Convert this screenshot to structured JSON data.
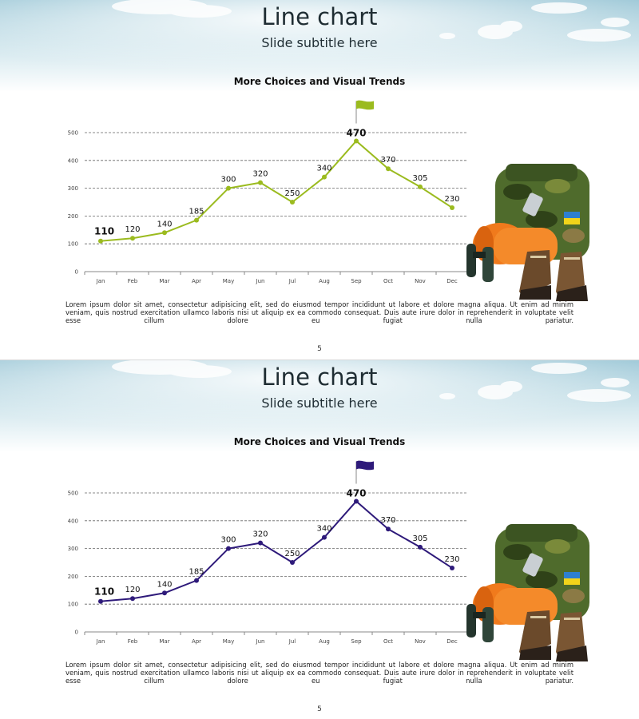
{
  "slides": [
    {
      "title": "Line chart",
      "subtitle": "Slide subtitle here",
      "page_number": "5",
      "body_text": "Lorem ipsum dolor sit amet, consectetur adipisicing elit, sed do eiusmod tempor incididunt ut labore et dolore magna aliqua. Ut enim ad minim veniam, quis nostrud exercitation ullamco laboris nisi ut aliquip ex ea commodo consequat. Duis aute irure dolor in reprehenderit in voluptate velit esse cillum dolore eu fugiat nulla pariatur.",
      "accent_color": "#9bbb1f",
      "flag_icon": "flag-icon",
      "image_icon": "hiking-gear-icon"
    },
    {
      "title": "Line chart",
      "subtitle": "Slide subtitle here",
      "page_number": "5",
      "body_text": "Lorem ipsum dolor sit amet, consectetur adipisicing elit, sed do eiusmod tempor incididunt ut labore et dolore magna aliqua. Ut enim ad minim veniam, quis nostrud exercitation ullamco laboris nisi ut aliquip ex ea commodo consequat. Duis aute irure dolor in reprehenderit in voluptate velit esse cillum dolore eu fugiat nulla pariatur.",
      "accent_color": "#2e1a7a",
      "flag_icon": "flag-icon",
      "image_icon": "hiking-gear-icon"
    }
  ],
  "chart_data": [
    {
      "type": "line",
      "title": "More Choices and Visual Trends",
      "categories": [
        "Jan",
        "Feb",
        "Mar",
        "Apr",
        "May",
        "Jun",
        "Jul",
        "Aug",
        "Sep",
        "Oct",
        "Nov",
        "Dec"
      ],
      "values": [
        110,
        120,
        140,
        185,
        300,
        320,
        250,
        340,
        470,
        370,
        305,
        230
      ],
      "data_labels": [
        "110",
        "120",
        "140",
        "185",
        "300",
        "320",
        "250",
        "340",
        "470",
        "370",
        "305",
        "230"
      ],
      "ylim": [
        0,
        500
      ],
      "yticks": [
        "0",
        "100",
        "200",
        "300",
        "400",
        "500"
      ],
      "grid": true,
      "color": "#9bbb1f",
      "highlight": [
        "min",
        "max"
      ]
    },
    {
      "type": "line",
      "title": "More Choices and Visual Trends",
      "categories": [
        "Jan",
        "Feb",
        "Mar",
        "Apr",
        "May",
        "Jun",
        "Jul",
        "Aug",
        "Sep",
        "Oct",
        "Nov",
        "Dec"
      ],
      "values": [
        110,
        120,
        140,
        185,
        300,
        320,
        250,
        340,
        470,
        370,
        305,
        230
      ],
      "data_labels": [
        "110",
        "120",
        "140",
        "185",
        "300",
        "320",
        "250",
        "340",
        "470",
        "370",
        "305",
        "230"
      ],
      "ylim": [
        0,
        500
      ],
      "yticks": [
        "0",
        "100",
        "200",
        "300",
        "400",
        "500"
      ],
      "grid": true,
      "color": "#2e1a7a",
      "highlight": [
        "min",
        "max"
      ]
    }
  ]
}
